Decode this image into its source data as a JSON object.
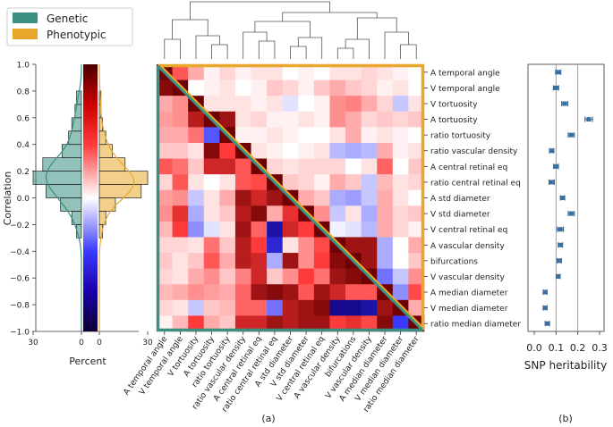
{
  "chart_data": [
    {
      "type": "histogram",
      "id": "correlation-histogram",
      "ylabel": "Correlation",
      "xlabel": "Percent",
      "ylim": [
        -1.0,
        1.0
      ],
      "yticks": [
        "1.0",
        "0.8",
        "0.6",
        "0.4",
        "0.2",
        "0.0",
        "−0.2",
        "−0.4",
        "−0.6",
        "−0.8",
        "−1.0"
      ],
      "xticks_left": [
        "30",
        "0"
      ],
      "xticks_right": [
        "0",
        "30"
      ],
      "legend": [
        {
          "name": "Genetic",
          "color": "#3a8f82"
        },
        {
          "name": "Phenotypic",
          "color": "#e8a72a"
        }
      ],
      "bin_edges": [
        -0.3,
        -0.2,
        -0.1,
        0.0,
        0.1,
        0.2,
        0.3,
        0.4,
        0.5,
        0.6,
        0.7,
        0.8
      ],
      "genetic_percent": [
        3,
        6,
        13,
        22,
        30,
        24,
        12,
        8,
        6,
        4,
        3
      ],
      "phenotypic_percent": [
        2,
        4,
        10,
        26,
        30,
        16,
        8,
        4,
        2,
        1,
        1
      ]
    },
    {
      "type": "heatmap",
      "id": "correlation-heatmap",
      "caption": "(a)",
      "labels": [
        "A temporal angle",
        "V temporal angle",
        "V tortuosity",
        "A tortuosity",
        "ratio tortuosity",
        "ratio vascular density",
        "A central retinal eq",
        "ratio central retinal eq",
        "A std diameter",
        "V std diameter",
        "V central retinal eq",
        "A vascular density",
        "bifurcations",
        "V vascular density",
        "A median diameter",
        "V median diameter",
        "ratio median diameter"
      ],
      "genetic_border_color": "#3a8f82",
      "phenotypic_border_color": "#e8a72a",
      "values": [
        [
          1.0,
          0.6,
          0.3,
          0.05,
          0.15,
          0.05,
          0.1,
          0.1,
          0.0,
          0.05,
          0.0,
          0.1,
          0.1,
          0.15,
          0.1,
          0.05,
          0.0
        ],
        [
          0.95,
          1.0,
          0.0,
          0.05,
          0.1,
          0.0,
          0.05,
          0.2,
          0.15,
          0.05,
          0.2,
          0.3,
          0.2,
          0.15,
          0.05,
          0.1,
          0.0
        ],
        [
          0.3,
          0.4,
          1.0,
          0.1,
          0.1,
          0.1,
          0.05,
          0.1,
          -0.1,
          0.0,
          0.05,
          0.4,
          0.45,
          0.3,
          0.15,
          -0.2,
          0.1
        ],
        [
          0.35,
          0.4,
          0.85,
          1.0,
          0.9,
          0.1,
          0.15,
          0.05,
          0.05,
          0.1,
          0.05,
          0.4,
          0.3,
          0.15,
          0.2,
          0.15,
          0.2
        ],
        [
          0.3,
          0.3,
          0.5,
          -0.6,
          1.0,
          0.05,
          0.05,
          0.1,
          0.05,
          0.0,
          0.0,
          0.1,
          0.3,
          0.05,
          0.1,
          0.05,
          0.0
        ],
        [
          0.2,
          0.2,
          0.1,
          0.95,
          0.7,
          1.0,
          0.1,
          0.05,
          0.0,
          0.05,
          0.1,
          -0.25,
          -0.3,
          -0.25,
          0.3,
          0.05,
          0.1
        ],
        [
          0.6,
          0.5,
          0.2,
          0.8,
          0.8,
          0.6,
          1.0,
          0.15,
          0.1,
          0.15,
          0.15,
          0.15,
          0.0,
          0.1,
          0.55,
          0.0,
          0.2
        ],
        [
          0.15,
          0.6,
          0.1,
          0.0,
          0.1,
          0.6,
          0.65,
          1.0,
          0.2,
          0.15,
          0.05,
          0.3,
          0.2,
          -0.2,
          0.25,
          0.1,
          0.15
        ],
        [
          0.35,
          0.4,
          -0.2,
          0.1,
          0.3,
          0.9,
          0.8,
          0.9,
          1.0,
          0.3,
          0.2,
          -0.3,
          -0.35,
          -0.2,
          0.3,
          0.1,
          0.0
        ],
        [
          0.4,
          0.75,
          -0.3,
          0.1,
          0.2,
          0.85,
          0.95,
          0.3,
          0.75,
          1.0,
          0.4,
          -0.2,
          0.1,
          -0.3,
          0.3,
          0.15,
          0.2
        ],
        [
          0.25,
          0.7,
          -0.4,
          -0.1,
          0.1,
          0.9,
          0.55,
          -0.9,
          0.8,
          0.7,
          1.0,
          -0.05,
          -0.1,
          -0.25,
          0.3,
          0.15,
          0.05
        ],
        [
          0.15,
          0.15,
          0.1,
          0.5,
          0.2,
          0.85,
          0.7,
          -0.8,
          0.1,
          0.4,
          0.65,
          1.0,
          0.9,
          0.9,
          -0.3,
          0.0,
          0.3
        ],
        [
          0.2,
          0.1,
          0.2,
          0.6,
          0.3,
          0.85,
          0.8,
          -0.3,
          0.9,
          0.4,
          0.7,
          0.95,
          1.0,
          0.9,
          -0.3,
          0.0,
          0.2
        ],
        [
          0.15,
          0.1,
          0.3,
          0.4,
          0.2,
          0.45,
          0.8,
          0.2,
          0.4,
          0.7,
          0.5,
          0.9,
          0.95,
          1.0,
          -0.5,
          -0.2,
          0.4
        ],
        [
          0.25,
          0.3,
          0.4,
          0.35,
          0.3,
          0.55,
          0.9,
          0.95,
          0.9,
          0.6,
          0.9,
          0.8,
          0.6,
          0.6,
          1.0,
          -0.4,
          0.65
        ],
        [
          0.15,
          0.1,
          -0.2,
          0.2,
          0.25,
          0.55,
          0.55,
          -0.5,
          0.85,
          0.9,
          0.95,
          -0.95,
          -0.95,
          -0.9,
          0.9,
          1.0,
          0.3
        ],
        [
          0.05,
          0.25,
          0.7,
          0.3,
          0.2,
          0.8,
          0.8,
          0.9,
          0.85,
          0.9,
          0.9,
          0.7,
          0.75,
          0.65,
          0.95,
          -0.7,
          1.0
        ]
      ],
      "colorbar": {
        "min": -1.0,
        "max": 1.0
      }
    },
    {
      "type": "errorbar",
      "id": "snp-heritability",
      "caption": "(b)",
      "xlabel": "SNP heritability",
      "xlim": [
        0.0,
        0.3
      ],
      "xticks": [
        "0.0",
        "0.1",
        "0.2",
        "0.3"
      ],
      "reference_lines": [
        0.1,
        0.2
      ],
      "labels": [
        "A temporal angle",
        "V temporal angle",
        "V tortuosity",
        "A tortuosity",
        "ratio tortuosity",
        "ratio vascular density",
        "A central retinal eq",
        "ratio central retinal eq",
        "A std diameter",
        "V std diameter",
        "V central retinal eq",
        "A vascular density",
        "bifurcations",
        "V vascular density",
        "A median diameter",
        "V median diameter",
        "ratio median diameter"
      ],
      "values": [
        0.11,
        0.1,
        0.14,
        0.25,
        0.17,
        0.08,
        0.1,
        0.08,
        0.13,
        0.17,
        0.12,
        0.12,
        0.115,
        0.11,
        0.05,
        0.05,
        0.06
      ],
      "errors": [
        0.012,
        0.012,
        0.014,
        0.017,
        0.014,
        0.01,
        0.011,
        0.012,
        0.01,
        0.014,
        0.014,
        0.01,
        0.01,
        0.009,
        0.009,
        0.009,
        0.01
      ]
    }
  ]
}
